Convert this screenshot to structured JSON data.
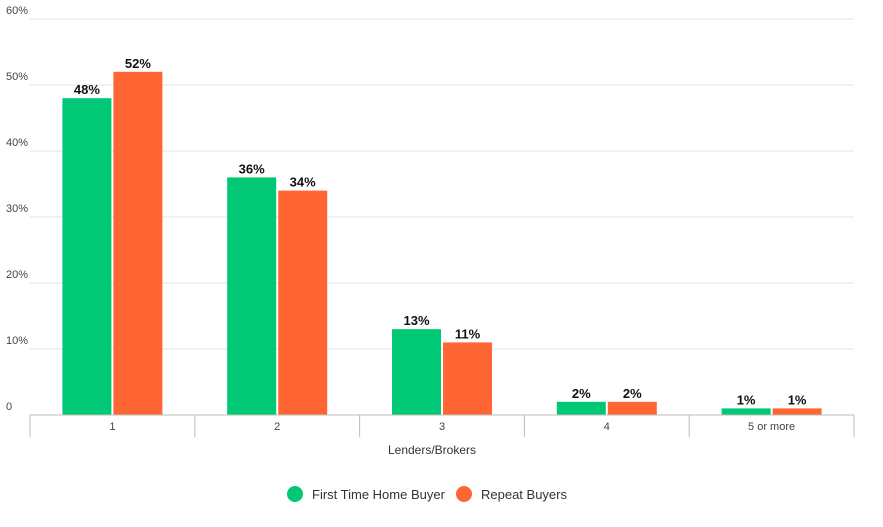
{
  "chart_data": {
    "type": "bar",
    "title": "",
    "xlabel": "Lenders/Brokers",
    "ylabel": "",
    "categories": [
      "1",
      "2",
      "3",
      "4",
      "5 or more"
    ],
    "series": [
      {
        "name": "First Time Home Buyer",
        "color": "#00c875",
        "values": [
          48,
          36,
          13,
          2,
          1
        ]
      },
      {
        "name": "Repeat Buyers",
        "color": "#ff6633",
        "values": [
          52,
          34,
          11,
          2,
          1
        ]
      }
    ],
    "value_labels": [
      [
        "48%",
        "36%",
        "13%",
        "2%",
        "1%"
      ],
      [
        "52%",
        "34%",
        "11%",
        "2%",
        "1%"
      ]
    ],
    "ylim": [
      0,
      60
    ],
    "yticks": [
      0,
      10,
      20,
      30,
      40,
      50,
      60
    ],
    "ytick_labels": [
      "0",
      "10%",
      "20%",
      "30%",
      "40%",
      "50%",
      "60%"
    ],
    "grid": true,
    "legend_position": "bottom"
  }
}
